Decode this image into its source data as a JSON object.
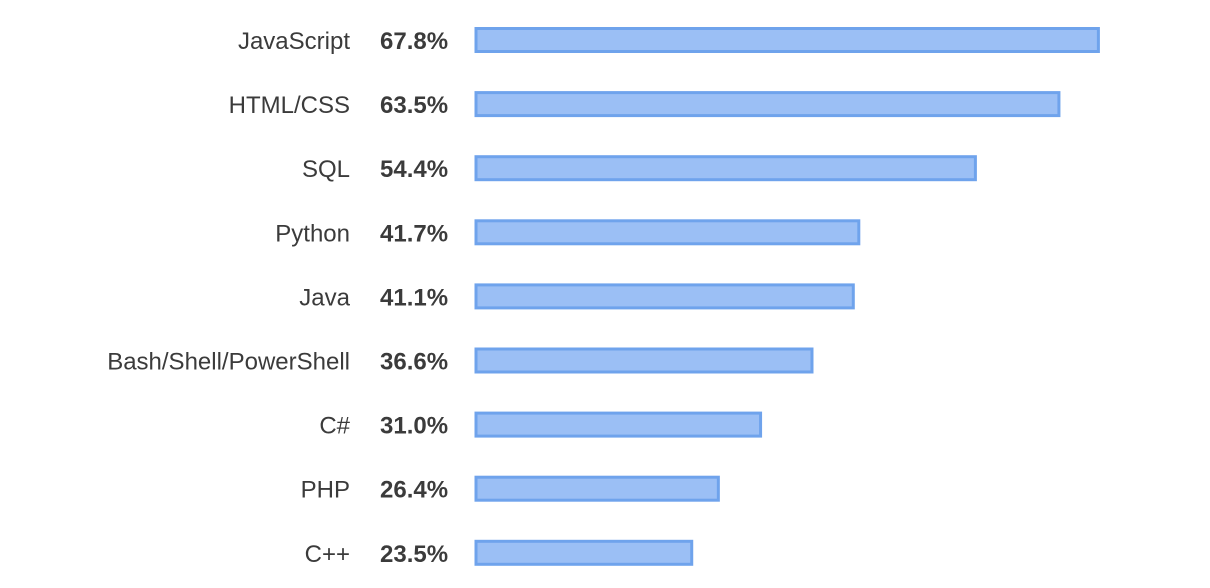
{
  "chart_data": {
    "type": "bar",
    "orientation": "horizontal",
    "title": "",
    "xlabel": "",
    "ylabel": "",
    "categories": [
      "JavaScript",
      "HTML/CSS",
      "SQL",
      "Python",
      "Java",
      "Bash/Shell/PowerShell",
      "C#",
      "PHP",
      "C++"
    ],
    "values": [
      67.8,
      63.5,
      54.4,
      41.7,
      41.1,
      36.6,
      31.0,
      26.4,
      23.5
    ],
    "value_labels": [
      "67.8%",
      "63.5%",
      "54.4%",
      "41.7%",
      "41.1%",
      "36.6%",
      "31.0%",
      "26.4%",
      "23.5%"
    ],
    "unit": "%",
    "grid": false,
    "legend": "none",
    "colors": {
      "bar_fill": "#9bbff5",
      "bar_stroke": "#6fa3ec",
      "text": "#3b3b3b"
    }
  }
}
